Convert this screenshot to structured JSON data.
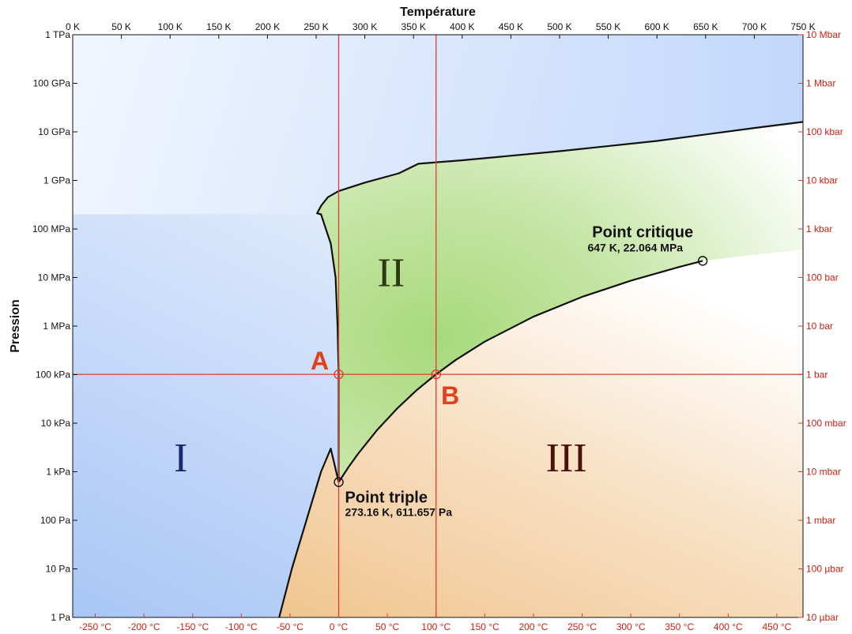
{
  "chart_data": {
    "type": "phase-diagram",
    "title": "Température",
    "ylabel": "Pression",
    "x_range_K": [
      0,
      750
    ],
    "y_range_Pa": [
      1,
      1000000000000.0
    ],
    "y_scale": "log",
    "x_ticks_top": [
      "0 K",
      "50 K",
      "100 K",
      "150 K",
      "200 K",
      "250 K",
      "300 K",
      "350 K",
      "400 K",
      "450 K",
      "500 K",
      "550 K",
      "600 K",
      "650 K",
      "700 K",
      "750 K"
    ],
    "x_ticks_bottom": [
      "-250 °C",
      "-200 °C",
      "-150 °C",
      "-100 °C",
      "-50 °C",
      "0 °C",
      "50 °C",
      "100 °C",
      "150 °C",
      "200 °C",
      "250 °C",
      "300 °C",
      "350 °C",
      "400 °C",
      "450 °C"
    ],
    "x_ticks_bottom_K": [
      23.15,
      73.15,
      123.15,
      173.15,
      223.15,
      273.15,
      323.15,
      373.15,
      423.15,
      473.15,
      523.15,
      573.15,
      623.15,
      673.15,
      723.15
    ],
    "y_ticks_left": [
      "1 Pa",
      "10 Pa",
      "100 Pa",
      "1 kPa",
      "10 kPa",
      "100 kPa",
      "1 MPa",
      "10 MPa",
      "100 MPa",
      "1 GPa",
      "10 GPa",
      "100 GPa",
      "1 TPa"
    ],
    "y_ticks_right": [
      "10 µbar",
      "100 µbar",
      "1 mbar",
      "10 mbar",
      "100 mbar",
      "1 bar",
      "10 bar",
      "100 bar",
      "1 kbar",
      "10 kbar",
      "100 kbar",
      "1 Mbar",
      "10 Mbar"
    ],
    "phases": [
      {
        "label": "I",
        "color": "#1a2a6c"
      },
      {
        "label": "II",
        "color": "#2b3a12"
      },
      {
        "label": "III",
        "color": "#4a1208"
      }
    ],
    "curves": {
      "solid_liquid": [
        [
          273.16,
          611.657
        ],
        [
          273.16,
          1000.0
        ],
        [
          273.1,
          10000.0
        ],
        [
          273.15,
          101325
        ],
        [
          272,
          1000000.0
        ],
        [
          270,
          10000000.0
        ],
        [
          265,
          50000000.0
        ],
        [
          260,
          100000000.0
        ],
        [
          255,
          200000000.0
        ],
        [
          251,
          210000000.0
        ],
        [
          255,
          300000000.0
        ],
        [
          262,
          450000000.0
        ],
        [
          273,
          600000000.0
        ],
        [
          300,
          900000000.0
        ],
        [
          335,
          1400000000.0
        ],
        [
          355,
          2200000000.0
        ],
        [
          400,
          2600000000.0
        ],
        [
          500,
          4000000000.0
        ],
        [
          600,
          6500000000.0
        ],
        [
          700,
          12000000000.0
        ],
        [
          750,
          16000000000.0
        ]
      ],
      "liquid_vapor": [
        [
          273.16,
          611.657
        ],
        [
          283,
          1228
        ],
        [
          293,
          2339
        ],
        [
          313,
          7385
        ],
        [
          333,
          19946
        ],
        [
          353,
          47414
        ],
        [
          373.15,
          101325
        ],
        [
          393,
          198700
        ],
        [
          423,
          476000
        ],
        [
          473,
          1555000
        ],
        [
          523,
          3976000
        ],
        [
          573,
          8588000
        ],
        [
          623,
          16530000
        ],
        [
          647,
          22064000
        ]
      ],
      "solid_vapor": [
        [
          212,
          1
        ],
        [
          225,
          10
        ],
        [
          240,
          100
        ],
        [
          255,
          1000
        ],
        [
          265,
          3000
        ],
        [
          273.16,
          611.657
        ]
      ]
    },
    "points": [
      {
        "label": "Point critique",
        "detail": "647 K, 22.064 MPa",
        "T_K": 647,
        "P_Pa": 22064000
      },
      {
        "label": "Point triple",
        "detail": "273.16 K, 611.657 Pa",
        "T_K": 273.16,
        "P_Pa": 611.657
      }
    ],
    "reference_lines": {
      "vertical_T_K": [
        273.15,
        373.15
      ],
      "horizontal_P_Pa": [
        101325
      ]
    },
    "markers": [
      {
        "label": "A",
        "T_K": 273.15,
        "P_Pa": 101325
      },
      {
        "label": "B",
        "T_K": 373.15,
        "P_Pa": 101325
      }
    ],
    "colors": {
      "solid": "#b3ccf7",
      "liquid": "#b5df8e",
      "vapor": "#f3cfa0",
      "reference": "#e03c2e",
      "right_axis": "#d01e12"
    }
  }
}
